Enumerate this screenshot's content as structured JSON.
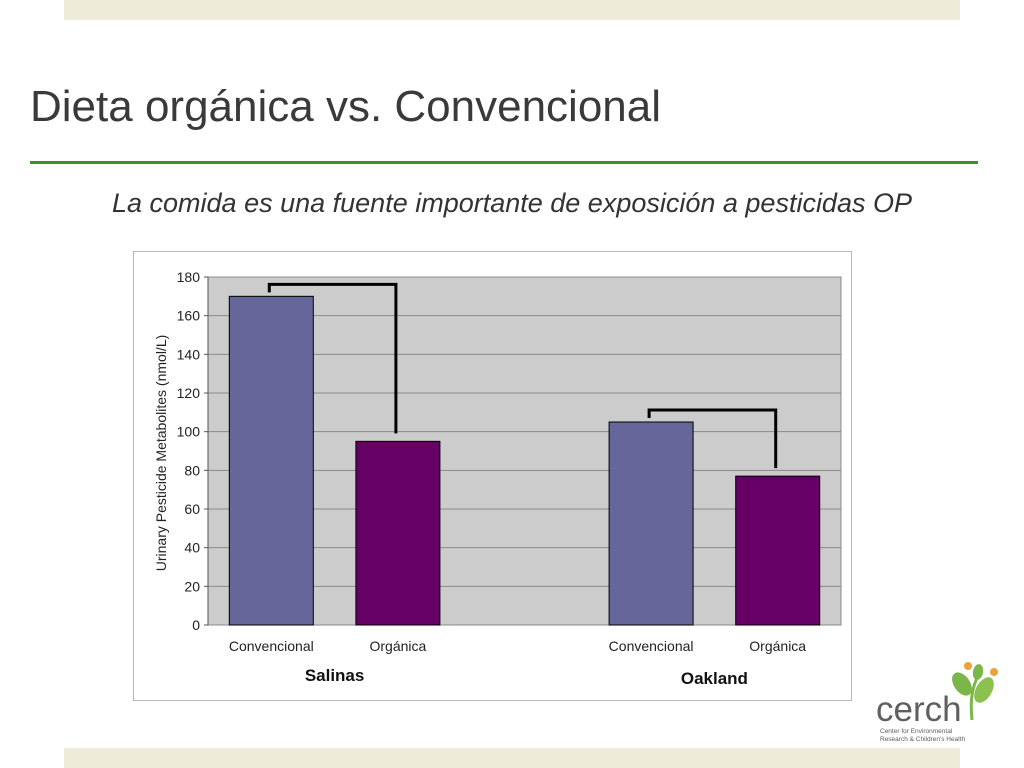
{
  "slide": {
    "title": "Dieta orgánica vs. Convencional",
    "subtitle": "La comida es una fuente importante de exposición a pesticidas OP"
  },
  "logo": {
    "name": "cerch",
    "tagline_line1": "Center for Environmental",
    "tagline_line2": "Research & Children's Health",
    "colors": {
      "text": "#5f5f5f",
      "leaf_green": "#7ab648",
      "leaf_orange": "#e8a33b"
    }
  },
  "chart_data": {
    "type": "bar",
    "title": "",
    "xlabel": "",
    "ylabel": "Urinary Pesticide Metabolites (nmol/L)",
    "ylim": [
      0,
      180
    ],
    "yticks": [
      0,
      20,
      40,
      60,
      80,
      100,
      120,
      140,
      160,
      180
    ],
    "grid": true,
    "legend": "none",
    "groups": [
      {
        "name": "Salinas",
        "bars": [
          {
            "category": "Convencional",
            "value": 170,
            "color": "#66669a"
          },
          {
            "category": "Orgánica",
            "value": 95,
            "color": "#660066"
          }
        ]
      },
      {
        "name": "Oakland",
        "bars": [
          {
            "category": "Convencional",
            "value": 105,
            "color": "#66669a"
          },
          {
            "category": "Orgánica",
            "value": 77,
            "color": "#660066"
          }
        ]
      }
    ],
    "plot_background": "#cccccc"
  }
}
